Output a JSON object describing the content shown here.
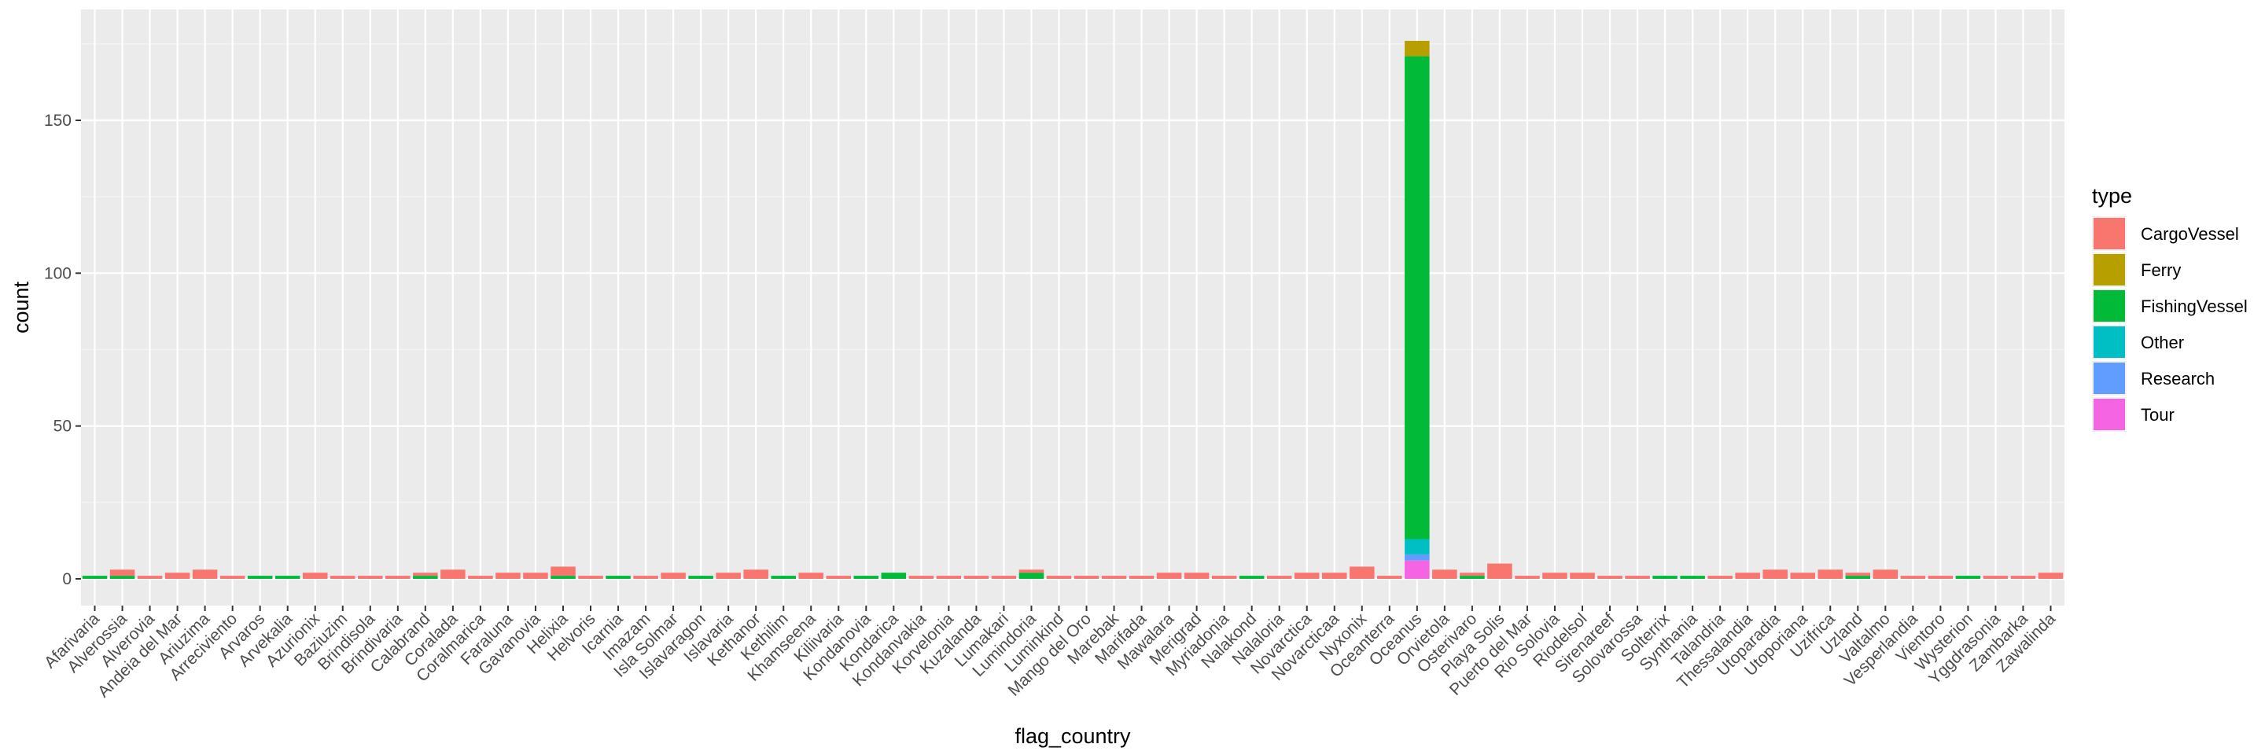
{
  "chart_data": {
    "type": "bar",
    "stacked": true,
    "title": "",
    "xlabel": "flag_country",
    "ylabel": "count",
    "ylim": [
      0,
      180
    ],
    "yticks": [
      0,
      50,
      100,
      150
    ],
    "grid": true,
    "legend_title": "type",
    "legend_position": "right",
    "categories": [
      "Afarivaria",
      "Alverossia",
      "Alverovia",
      "Andeia del Mar",
      "Ariuzima",
      "Arreciviento",
      "Arvaros",
      "Arvekalia",
      "Azurionix",
      "Baziuzim",
      "Brindisola",
      "Brindivaria",
      "Calabrand",
      "Coralada",
      "Coralmarica",
      "Faraluna",
      "Gavanovia",
      "Helixia",
      "Helvoris",
      "Icarnia",
      "Imazam",
      "Isla Solmar",
      "Islavaragon",
      "Islavaria",
      "Kethanor",
      "Kethilim",
      "Khamseena",
      "Kiliivaria",
      "Kondanovia",
      "Kondarica",
      "Kondanvakia",
      "Korvelonia",
      "Kuzalanda",
      "Lumakari",
      "Lumindoria",
      "Luminkind",
      "Mango del Oro",
      "Marebak",
      "Marifada",
      "Mawalara",
      "Merigrad",
      "Myriadonia",
      "Nalakond",
      "Nalaloria",
      "Novarctica",
      "Novarcticaa",
      "Nyxonix",
      "Oceanterra",
      "Oceanus",
      "Orvietola",
      "Osterivaro",
      "Playa Solis",
      "Puerto del Mar",
      "Rio Solovia",
      "Riodelsol",
      "Sirenareef",
      "Solovarossa",
      "Solterrix",
      "Synthania",
      "Talandria",
      "Thessalandia",
      "Utoparadia",
      "Utoporiana",
      "Uzifrica",
      "Uzland",
      "Valtalmo",
      "Vesperlandia",
      "Vientoro",
      "Wysterion",
      "Yggdrasonia",
      "Zambarka",
      "Zawalinda"
    ],
    "series": [
      {
        "name": "CargoVessel",
        "color": "#F8766D",
        "values": [
          0,
          2,
          1,
          2,
          3,
          1,
          0,
          0,
          2,
          1,
          1,
          1,
          1,
          3,
          1,
          2,
          2,
          3,
          1,
          0,
          1,
          2,
          0,
          2,
          3,
          0,
          2,
          1,
          0,
          0,
          1,
          1,
          1,
          1,
          1,
          1,
          1,
          1,
          1,
          2,
          2,
          1,
          0,
          1,
          2,
          2,
          4,
          1,
          0,
          3,
          1,
          5,
          1,
          2,
          2,
          1,
          1,
          0,
          0,
          1,
          2,
          3,
          2,
          3,
          1,
          3,
          1,
          1,
          0,
          1,
          1,
          2
        ]
      },
      {
        "name": "Ferry",
        "color": "#B79F00",
        "values": [
          0,
          0,
          0,
          0,
          0,
          0,
          0,
          0,
          0,
          0,
          0,
          0,
          0,
          0,
          0,
          0,
          0,
          0,
          0,
          0,
          0,
          0,
          0,
          0,
          0,
          0,
          0,
          0,
          0,
          0,
          0,
          0,
          0,
          0,
          0,
          0,
          0,
          0,
          0,
          0,
          0,
          0,
          0,
          0,
          0,
          0,
          0,
          0,
          5,
          0,
          0,
          0,
          0,
          0,
          0,
          0,
          0,
          0,
          0,
          0,
          0,
          0,
          0,
          0,
          0,
          0,
          0,
          0,
          0,
          0,
          0,
          0
        ]
      },
      {
        "name": "FishingVessel",
        "color": "#00BA38",
        "values": [
          1,
          1,
          0,
          0,
          0,
          0,
          1,
          1,
          0,
          0,
          0,
          0,
          1,
          0,
          0,
          0,
          0,
          1,
          0,
          1,
          0,
          0,
          1,
          0,
          0,
          1,
          0,
          0,
          1,
          2,
          0,
          0,
          0,
          0,
          2,
          0,
          0,
          0,
          0,
          0,
          0,
          0,
          1,
          0,
          0,
          0,
          0,
          0,
          158,
          0,
          1,
          0,
          0,
          0,
          0,
          0,
          0,
          1,
          1,
          0,
          0,
          0,
          0,
          0,
          1,
          0,
          0,
          0,
          1,
          0,
          0,
          0
        ]
      },
      {
        "name": "Other",
        "color": "#00BFC4",
        "values": [
          0,
          0,
          0,
          0,
          0,
          0,
          0,
          0,
          0,
          0,
          0,
          0,
          0,
          0,
          0,
          0,
          0,
          0,
          0,
          0,
          0,
          0,
          0,
          0,
          0,
          0,
          0,
          0,
          0,
          0,
          0,
          0,
          0,
          0,
          0,
          0,
          0,
          0,
          0,
          0,
          0,
          0,
          0,
          0,
          0,
          0,
          0,
          0,
          5,
          0,
          0,
          0,
          0,
          0,
          0,
          0,
          0,
          0,
          0,
          0,
          0,
          0,
          0,
          0,
          0,
          0,
          0,
          0,
          0,
          0,
          0,
          0
        ]
      },
      {
        "name": "Research",
        "color": "#619CFF",
        "values": [
          0,
          0,
          0,
          0,
          0,
          0,
          0,
          0,
          0,
          0,
          0,
          0,
          0,
          0,
          0,
          0,
          0,
          0,
          0,
          0,
          0,
          0,
          0,
          0,
          0,
          0,
          0,
          0,
          0,
          0,
          0,
          0,
          0,
          0,
          0,
          0,
          0,
          0,
          0,
          0,
          0,
          0,
          0,
          0,
          0,
          0,
          0,
          0,
          2,
          0,
          0,
          0,
          0,
          0,
          0,
          0,
          0,
          0,
          0,
          0,
          0,
          0,
          0,
          0,
          0,
          0,
          0,
          0,
          0,
          0,
          0,
          0
        ]
      },
      {
        "name": "Tour",
        "color": "#F564E3",
        "values": [
          0,
          0,
          0,
          0,
          0,
          0,
          0,
          0,
          0,
          0,
          0,
          0,
          0,
          0,
          0,
          0,
          0,
          0,
          0,
          0,
          0,
          0,
          0,
          0,
          0,
          0,
          0,
          0,
          0,
          0,
          0,
          0,
          0,
          0,
          0,
          0,
          0,
          0,
          0,
          0,
          0,
          0,
          0,
          0,
          0,
          0,
          0,
          0,
          6,
          0,
          0,
          0,
          0,
          0,
          0,
          0,
          0,
          0,
          0,
          0,
          0,
          0,
          0,
          0,
          0,
          0,
          0,
          0,
          0,
          0,
          0,
          0
        ]
      }
    ]
  }
}
